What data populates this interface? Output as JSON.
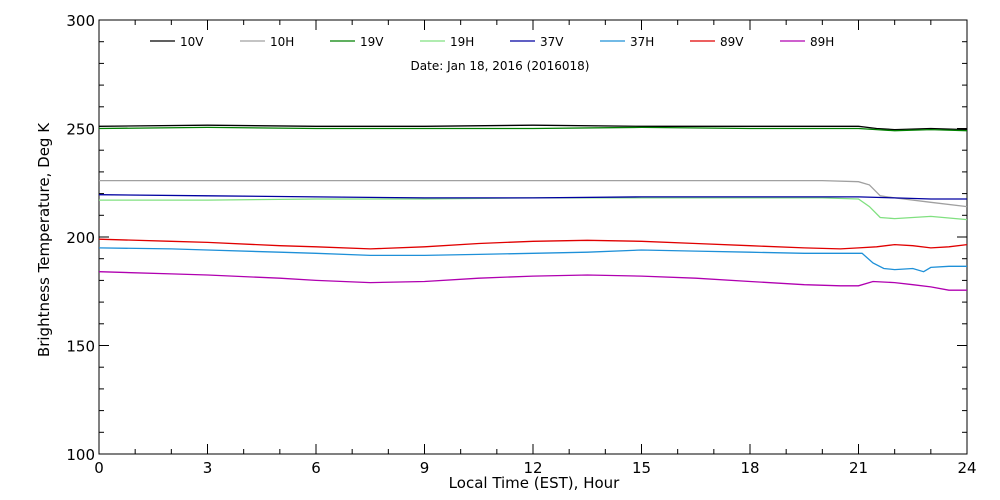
{
  "chart_data": {
    "type": "line",
    "title": "",
    "annotation": "Date: Jan 18, 2016 (2016018)",
    "xlabel": "Local Time (EST), Hour",
    "ylabel": "Brightness Temperature, Deg K",
    "xlim": [
      0,
      24
    ],
    "ylim": [
      100,
      300
    ],
    "xticks": [
      0,
      3,
      6,
      9,
      12,
      15,
      18,
      21,
      24
    ],
    "yticks": [
      100,
      150,
      200,
      250,
      300
    ],
    "grid": false,
    "legend_position": "top",
    "series": [
      {
        "name": "10V",
        "color": "#000000",
        "x": [
          0,
          3,
          6,
          9,
          12,
          15,
          18,
          20,
          21,
          21.5,
          22,
          23,
          24
        ],
        "y": [
          251,
          251.5,
          251,
          251,
          251.5,
          251,
          251,
          251,
          251,
          250,
          249.5,
          250,
          249.5
        ]
      },
      {
        "name": "10H",
        "color": "#a0a0a0",
        "x": [
          0,
          3,
          6,
          9,
          12,
          15,
          18,
          20,
          21,
          21.3,
          21.6,
          22,
          23,
          24
        ],
        "y": [
          226,
          226,
          226,
          226,
          226,
          226,
          226,
          226,
          225.5,
          224,
          219,
          218,
          216,
          214
        ]
      },
      {
        "name": "19V",
        "color": "#008000",
        "x": [
          0,
          3,
          6,
          9,
          12,
          15,
          18,
          20,
          21,
          21.5,
          22,
          23,
          24
        ],
        "y": [
          250,
          250.5,
          250,
          250,
          250,
          250.5,
          250,
          250,
          250,
          249.5,
          249,
          249.5,
          249
        ]
      },
      {
        "name": "19H",
        "color": "#80e080",
        "x": [
          0,
          3,
          6,
          9,
          12,
          15,
          18,
          20,
          21,
          21.3,
          21.6,
          22,
          23,
          24
        ],
        "y": [
          217,
          217,
          217.5,
          217.5,
          218,
          218,
          218,
          218,
          217.5,
          214,
          209,
          208.5,
          209.5,
          208
        ]
      },
      {
        "name": "37V",
        "color": "#0000a0",
        "x": [
          0,
          3,
          6,
          9,
          12,
          15,
          18,
          20,
          21,
          22,
          23,
          24
        ],
        "y": [
          219.5,
          219,
          218.5,
          218,
          218,
          218.5,
          218.5,
          218.5,
          218.5,
          218,
          217.5,
          217.5
        ]
      },
      {
        "name": "37H",
        "color": "#1e90d8",
        "x": [
          0,
          2,
          3,
          5,
          6,
          7.5,
          9,
          10.5,
          12,
          13.5,
          15,
          16.5,
          18,
          19.5,
          20.5,
          21.1,
          21.4,
          21.7,
          22,
          22.5,
          22.8,
          23,
          23.5,
          24
        ],
        "y": [
          195,
          194.5,
          194,
          193,
          192.5,
          191.5,
          191.5,
          192,
          192.5,
          193,
          194,
          193.5,
          193,
          192.5,
          192.5,
          192.5,
          188,
          185.5,
          185,
          185.5,
          184,
          186,
          186.5,
          186.5
        ]
      },
      {
        "name": "89V",
        "color": "#e00000",
        "x": [
          0,
          2,
          3,
          5,
          6,
          7.5,
          9,
          10.5,
          12,
          13.5,
          15,
          16.5,
          18,
          19.5,
          20.5,
          21,
          21.5,
          22,
          22.5,
          23,
          23.5,
          24
        ],
        "y": [
          199,
          198,
          197.5,
          196,
          195.5,
          194.5,
          195.5,
          197,
          198,
          198.5,
          198,
          197,
          196,
          195,
          194.5,
          195,
          195.5,
          196.5,
          196,
          195,
          195.5,
          196.5
        ]
      },
      {
        "name": "89H",
        "color": "#b000b0",
        "x": [
          0,
          2,
          3,
          5,
          6,
          7.5,
          9,
          10.5,
          12,
          13.5,
          15,
          16.5,
          18,
          19.5,
          20.5,
          21,
          21.4,
          22,
          22.5,
          23,
          23.5,
          24
        ],
        "y": [
          184,
          183,
          182.5,
          181,
          180,
          179,
          179.5,
          181,
          182,
          182.5,
          182,
          181,
          179.5,
          178,
          177.5,
          177.5,
          179.5,
          179,
          178,
          177,
          175.5,
          175.5
        ]
      }
    ]
  }
}
